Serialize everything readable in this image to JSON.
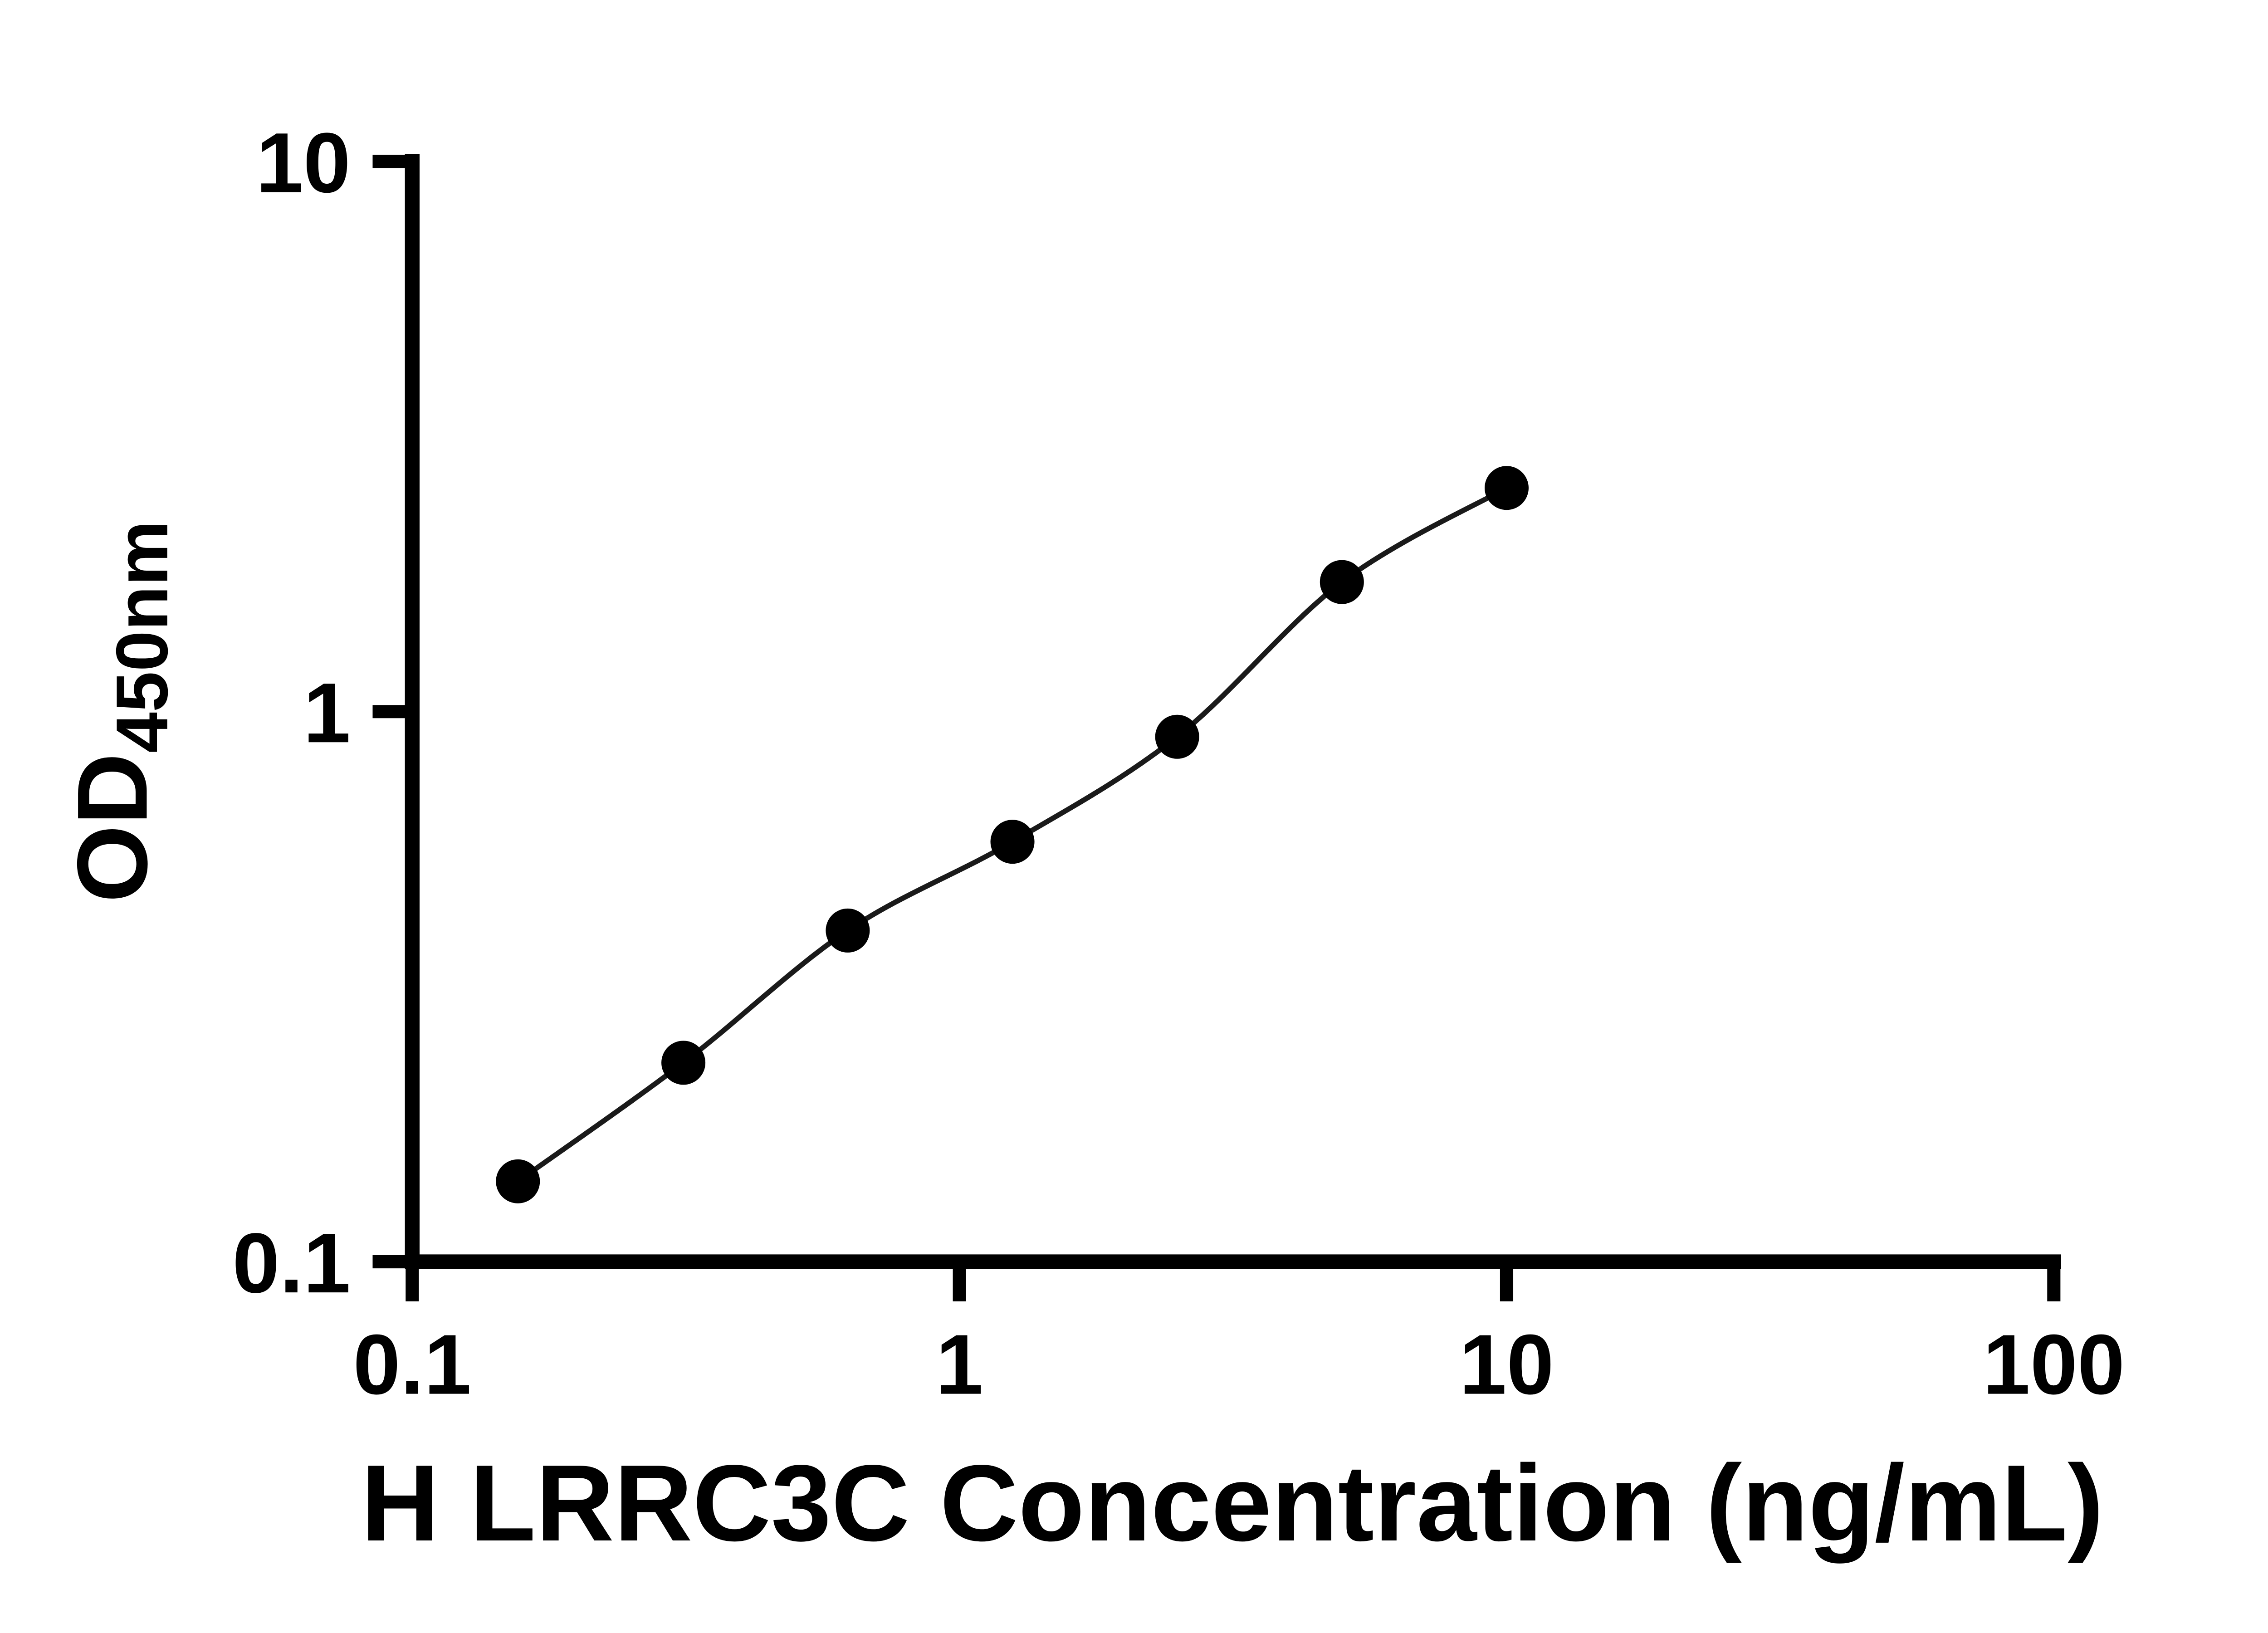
{
  "chart_data": {
    "type": "scatter",
    "title": "",
    "xlabel": "H LRRC3C Concentration (ng/mL)",
    "ylabel_main": "OD",
    "ylabel_sub": "450nm",
    "x_scale": "log",
    "y_scale": "log",
    "xlim": [
      0.1,
      100
    ],
    "ylim": [
      0.1,
      10
    ],
    "x_ticks": [
      0.1,
      1,
      10,
      100
    ],
    "x_tick_labels": [
      "0.1",
      "1",
      "10",
      "100"
    ],
    "y_ticks": [
      0.1,
      1,
      10
    ],
    "y_tick_labels": [
      "0.1",
      "1",
      "10"
    ],
    "grid": false,
    "legend": "none",
    "background": "#ffffff",
    "axis_color": "#000000",
    "series": [
      {
        "x": [
          0.156,
          0.313,
          0.625,
          1.25,
          2.5,
          5,
          10
        ],
        "y": [
          0.14,
          0.23,
          0.4,
          0.58,
          0.9,
          1.72,
          2.55
        ],
        "marker": "circle",
        "marker_color": "#000000",
        "line": true,
        "line_color": "#1a1a1a"
      }
    ]
  }
}
